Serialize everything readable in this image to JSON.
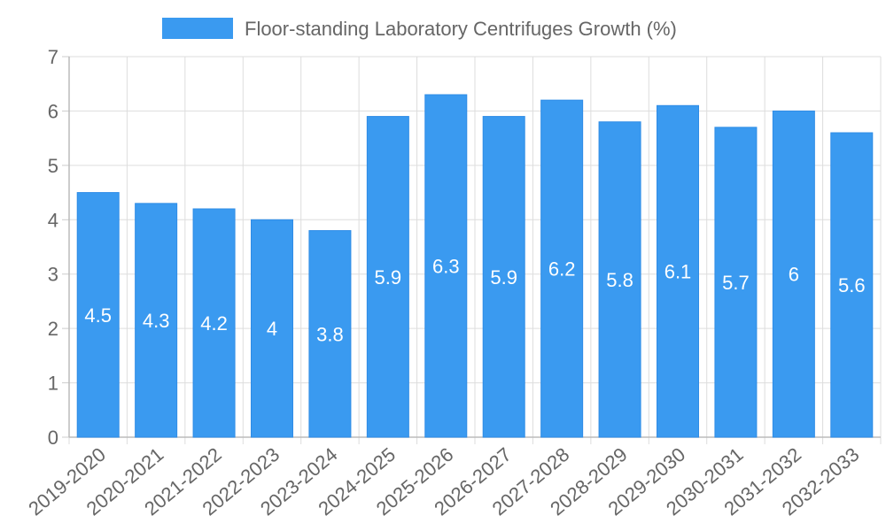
{
  "chart_data": {
    "type": "bar",
    "title": "",
    "xlabel": "",
    "ylabel": "",
    "legend_position": "top",
    "grid": true,
    "ylim": [
      0,
      7
    ],
    "yticks": [
      0,
      1,
      2,
      3,
      4,
      5,
      6,
      7
    ],
    "categories": [
      "2019-2020",
      "2020-2021",
      "2021-2022",
      "2022-2023",
      "2023-2024",
      "2024-2025",
      "2025-2026",
      "2026-2027",
      "2027-2028",
      "2028-2029",
      "2029-2030",
      "2030-2031",
      "2031-2032",
      "2032-2033"
    ],
    "series": [
      {
        "name": "Floor-standing Laboratory Centrifuges Growth (%)",
        "color": "#3a9af0",
        "values": [
          4.5,
          4.3,
          4.2,
          4,
          3.8,
          5.9,
          6.3,
          5.9,
          6.2,
          5.8,
          6.1,
          5.7,
          6,
          5.6
        ]
      }
    ]
  }
}
